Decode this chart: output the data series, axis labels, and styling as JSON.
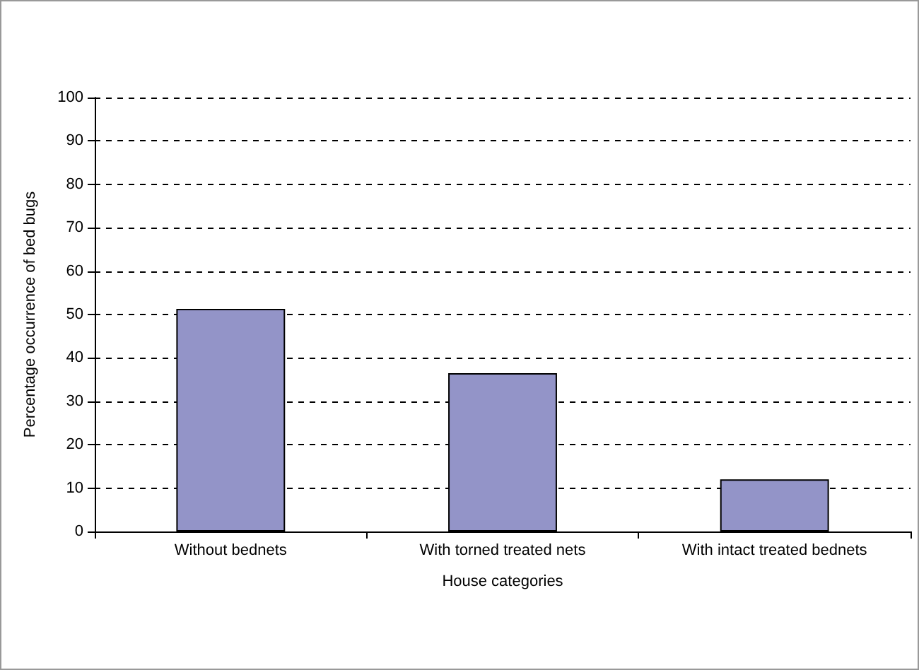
{
  "chart_data": {
    "type": "bar",
    "xlabel": "House categories",
    "ylabel": "Percentage occurrence of bed bugs",
    "categories": [
      "Without bednets",
      "With torned treated nets",
      "With intact treated bednets"
    ],
    "values": [
      51.3,
      36.5,
      12
    ],
    "color": "#9394c8",
    "ylim": [
      0,
      100
    ],
    "yticks": [
      0,
      10,
      20,
      30,
      40,
      50,
      60,
      70,
      80,
      90,
      100
    ],
    "grid": "y",
    "line_style": "dashed"
  }
}
